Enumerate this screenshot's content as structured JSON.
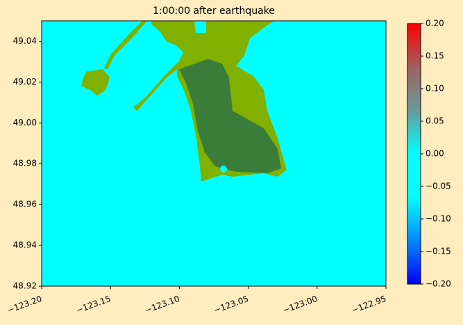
{
  "chart_data": {
    "type": "map",
    "title": "1:00:00 after earthquake",
    "xlim": [
      -123.2,
      -122.95
    ],
    "xticks": [
      {
        "value": -123.2,
        "label": "−123.20"
      },
      {
        "value": -123.15,
        "label": "−123.15"
      },
      {
        "value": -123.1,
        "label": "−123.10"
      },
      {
        "value": -123.05,
        "label": "−123.05"
      },
      {
        "value": -123.0,
        "label": "−123.00"
      },
      {
        "value": -122.95,
        "label": "−122.95"
      }
    ],
    "ylim": [
      48.92,
      49.05
    ],
    "yticks": [
      48.92,
      48.94,
      48.96,
      48.98,
      {
        "value": 49.0,
        "label": "49.00"
      },
      49.02,
      49.04
    ],
    "colorbar": {
      "lim": [
        -0.2,
        0.2
      ],
      "ticks": [
        {
          "value": -0.2,
          "label": "−0.20"
        },
        {
          "value": -0.15,
          "label": "−0.15"
        },
        {
          "value": -0.1,
          "label": "−0.10"
        },
        {
          "value": -0.05,
          "label": "−0.05"
        },
        {
          "value": 0,
          "label": "0.00"
        },
        0.05,
        {
          "value": 0.1,
          "label": "0.10"
        },
        0.15,
        {
          "value": 0.2,
          "label": "0.20"
        }
      ],
      "colors": [
        "#0000ff",
        "#0088ff",
        "#00ffff",
        "#00ffff",
        "#6a9a9a",
        "#a06060",
        "#ff0000"
      ]
    }
  }
}
